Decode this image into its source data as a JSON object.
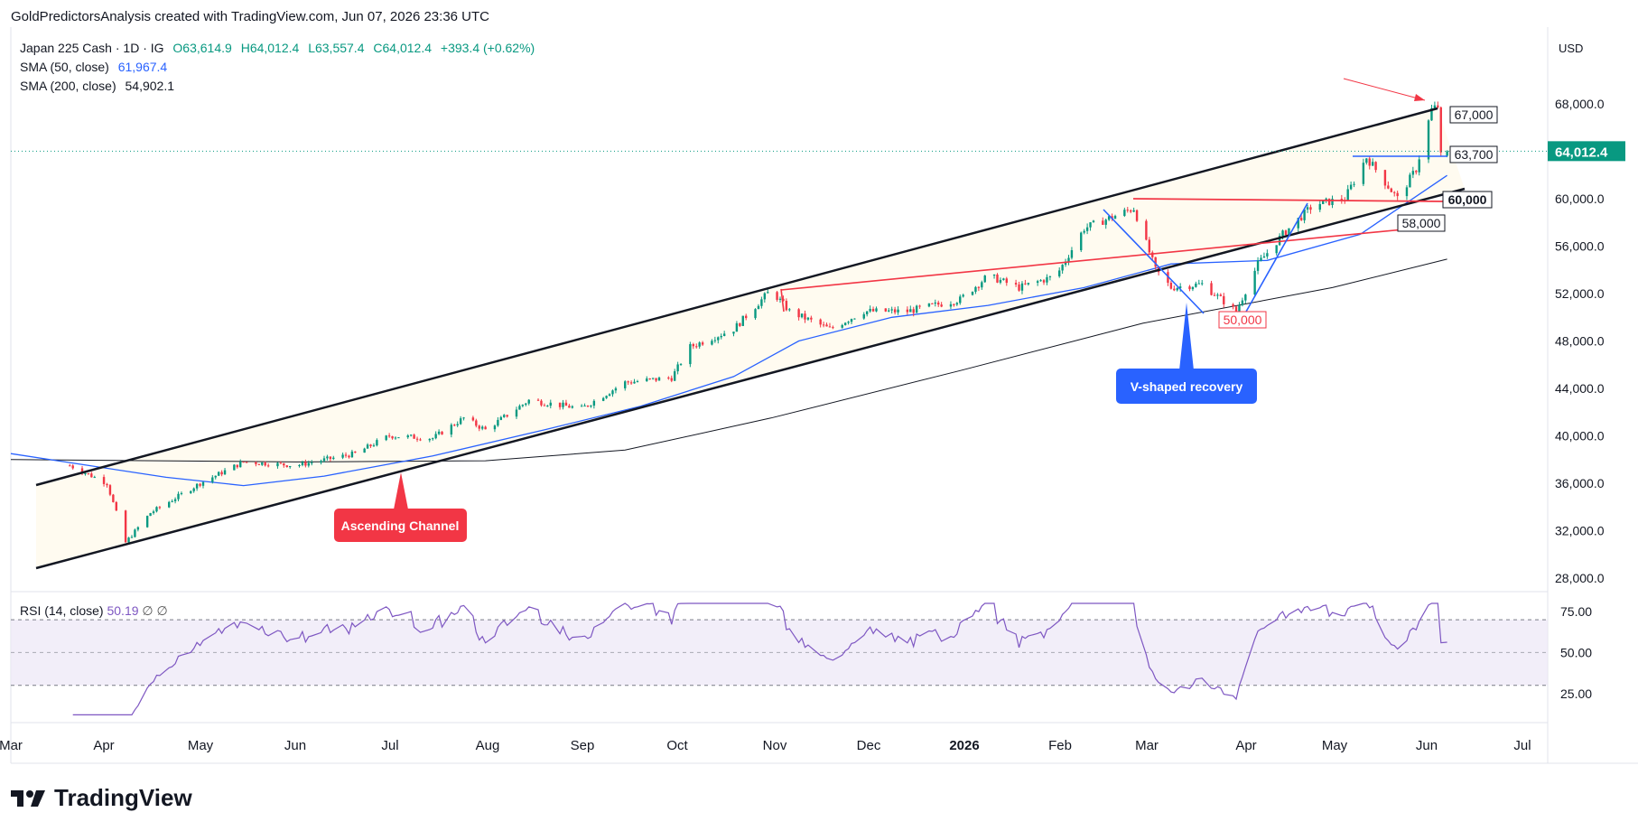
{
  "header": {
    "credit": "GoldPredictorsAnalysis created with TradingView.com, Jun 07, 2026 23:36 UTC"
  },
  "legend": {
    "symbol": "Japan 225 Cash · 1D · IG",
    "open": "O63,614.9",
    "high": "H64,012.4",
    "low": "L63,557.4",
    "close": "C64,012.4",
    "change": "+393.4 (+0.62%)",
    "sma50_label": "SMA (50, close)",
    "sma50_value": "61,967.4",
    "sma200_label": "SMA (200, close)",
    "sma200_value": "54,902.1"
  },
  "currency": "USD",
  "last_price_label": "64,012.4",
  "rsi": {
    "label": "RSI (14, close)",
    "value": "50.19",
    "extra1": "∅",
    "extra2": "∅",
    "ticks": [
      "75.00",
      "50.00",
      "25.00"
    ]
  },
  "annotations": {
    "ascending_channel": "Ascending Channel",
    "v_shaped": "V-shaped recovery",
    "lvl_67000": "67,000",
    "lvl_63700": "63,700",
    "lvl_60000": "60,000",
    "lvl_58000": "58,000",
    "lvl_50000": "50,000"
  },
  "colors": {
    "up": "#089981",
    "down": "#f23645",
    "sma50": "#2962ff",
    "sma200": "#131722",
    "rsi": "#7e57c2",
    "annotation_red": "#f23645",
    "annotation_blue": "#2962ff"
  },
  "brand": "TradingView",
  "chart_data": {
    "type": "candlestick",
    "y_ticks": [
      "68,000.0",
      "64,000.0",
      "60,000.0",
      "56,000.0",
      "52,000.0",
      "48,000.0",
      "44,000.0",
      "40,000.0",
      "36,000.0",
      "32,000.0",
      "28,000.0"
    ],
    "x_ticks": [
      "Mar",
      "Apr",
      "May",
      "Jun",
      "Jul",
      "Aug",
      "Sep",
      "Oct",
      "Nov",
      "Dec",
      "2026",
      "Feb",
      "Mar",
      "Apr",
      "May",
      "Jun",
      "Jul"
    ],
    "ylim": [
      27000,
      69500
    ],
    "series_key_points": [
      [
        "2025-03-20",
        37500
      ],
      [
        "2025-04-01",
        36000
      ],
      [
        "2025-04-07",
        31000
      ],
      [
        "2025-04-15",
        33500
      ],
      [
        "2025-05-01",
        36000
      ],
      [
        "2025-05-15",
        37800
      ],
      [
        "2025-06-01",
        37500
      ],
      [
        "2025-06-20",
        38500
      ],
      [
        "2025-07-01",
        40000
      ],
      [
        "2025-07-15",
        39800
      ],
      [
        "2025-07-25",
        41500
      ],
      [
        "2025-08-01",
        40500
      ],
      [
        "2025-08-15",
        43000
      ],
      [
        "2025-09-01",
        42300
      ],
      [
        "2025-09-15",
        44500
      ],
      [
        "2025-09-30",
        44900
      ],
      [
        "2025-10-06",
        47500
      ],
      [
        "2025-10-20",
        49000
      ],
      [
        "2025-11-01",
        52300
      ],
      [
        "2025-11-07",
        50500
      ],
      [
        "2025-11-20",
        49000
      ],
      [
        "2025-12-01",
        50500
      ],
      [
        "2025-12-15",
        50500
      ],
      [
        "2026-01-01",
        51500
      ],
      [
        "2026-01-10",
        53500
      ],
      [
        "2026-01-20",
        52500
      ],
      [
        "2026-02-01",
        53500
      ],
      [
        "2026-02-10",
        57500
      ],
      [
        "2026-02-26",
        59200
      ],
      [
        "2026-03-05",
        54000
      ],
      [
        "2026-03-10",
        52500
      ],
      [
        "2026-03-20",
        52800
      ],
      [
        "2026-03-31",
        50500
      ],
      [
        "2026-04-07",
        54500
      ],
      [
        "2026-04-15",
        57000
      ],
      [
        "2026-04-25",
        59500
      ],
      [
        "2026-05-05",
        60000
      ],
      [
        "2026-05-12",
        63500
      ],
      [
        "2026-05-22",
        60000
      ],
      [
        "2026-05-28",
        62500
      ],
      [
        "2026-06-02",
        67500
      ],
      [
        "2026-06-04",
        67800
      ],
      [
        "2026-06-05",
        63600
      ],
      [
        "2026-06-07",
        64012
      ]
    ],
    "sma50": [
      [
        "2025-03-01",
        38500
      ],
      [
        "2025-04-20",
        36500
      ],
      [
        "2025-05-15",
        35800
      ],
      [
        "2025-06-10",
        36600
      ],
      [
        "2025-07-15",
        38300
      ],
      [
        "2025-08-20",
        40500
      ],
      [
        "2025-09-20",
        42500
      ],
      [
        "2025-10-20",
        45000
      ],
      [
        "2025-11-10",
        48000
      ],
      [
        "2025-12-10",
        50000
      ],
      [
        "2026-01-10",
        51000
      ],
      [
        "2026-02-10",
        52500
      ],
      [
        "2026-03-10",
        54500
      ],
      [
        "2026-04-10",
        54800
      ],
      [
        "2026-05-10",
        57000
      ],
      [
        "2026-06-07",
        61967
      ]
    ],
    "sma200": [
      [
        "2025-03-01",
        38000
      ],
      [
        "2025-06-01",
        37800
      ],
      [
        "2025-08-01",
        37900
      ],
      [
        "2025-09-15",
        38800
      ],
      [
        "2025-11-01",
        41500
      ],
      [
        "2026-01-01",
        45500
      ],
      [
        "2026-03-01",
        49500
      ],
      [
        "2026-05-01",
        52500
      ],
      [
        "2026-06-07",
        54902
      ]
    ],
    "rsi_range": [
      0,
      100
    ]
  }
}
